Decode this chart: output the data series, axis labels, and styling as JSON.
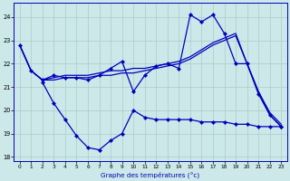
{
  "title": "Graphe des températures (°c)",
  "background_color": "#cce8e8",
  "grid_color": "#aacccc",
  "line_color": "#0000bb",
  "xlim": [
    -0.5,
    23.5
  ],
  "ylim": [
    17.8,
    24.6
  ],
  "yticks": [
    18,
    19,
    20,
    21,
    22,
    23,
    24
  ],
  "xticks": [
    0,
    1,
    2,
    3,
    4,
    5,
    6,
    7,
    8,
    9,
    10,
    11,
    12,
    13,
    14,
    15,
    16,
    17,
    18,
    19,
    20,
    21,
    22,
    23
  ],
  "line_zigzag_top_x": [
    0,
    1,
    2,
    3,
    4,
    5,
    6,
    7,
    8,
    9,
    10,
    11,
    12,
    13,
    14,
    15,
    16,
    17,
    18,
    19,
    20,
    21,
    22,
    23
  ],
  "line_zigzag_top_y": [
    22.8,
    21.7,
    21.3,
    21.5,
    21.4,
    21.4,
    21.3,
    21.5,
    21.8,
    22.1,
    20.8,
    21.5,
    21.9,
    22.0,
    21.8,
    24.1,
    23.8,
    24.1,
    23.3,
    22.0,
    22.0,
    20.7,
    19.8,
    19.3
  ],
  "line_smooth1_x": [
    0,
    1,
    2,
    3,
    4,
    5,
    6,
    7,
    8,
    9,
    10,
    11,
    12,
    13,
    14,
    15,
    16,
    17,
    18,
    19,
    20,
    21,
    22,
    23
  ],
  "line_smooth1_y": [
    22.8,
    21.7,
    21.3,
    21.4,
    21.5,
    21.5,
    21.5,
    21.6,
    21.7,
    21.7,
    21.8,
    21.8,
    21.9,
    22.0,
    22.1,
    22.3,
    22.6,
    22.9,
    23.1,
    23.3,
    22.0,
    20.8,
    19.9,
    19.4
  ],
  "line_smooth2_x": [
    0,
    1,
    2,
    3,
    4,
    5,
    6,
    7,
    8,
    9,
    10,
    11,
    12,
    13,
    14,
    15,
    16,
    17,
    18,
    19,
    20,
    21,
    22,
    23
  ],
  "line_smooth2_y": [
    22.8,
    21.7,
    21.3,
    21.3,
    21.4,
    21.4,
    21.4,
    21.5,
    21.5,
    21.6,
    21.6,
    21.7,
    21.8,
    21.9,
    22.0,
    22.2,
    22.5,
    22.8,
    23.0,
    23.2,
    22.0,
    20.8,
    19.8,
    19.3
  ],
  "line_zigzag_bot_x": [
    2,
    3,
    4,
    5,
    6,
    7,
    8,
    9,
    10,
    11,
    12,
    13,
    14,
    15,
    16,
    17,
    18,
    19,
    20,
    21,
    22,
    23
  ],
  "line_zigzag_bot_y": [
    21.2,
    20.3,
    19.6,
    18.9,
    18.4,
    18.3,
    18.7,
    19.0,
    20.0,
    19.7,
    19.6,
    19.6,
    19.6,
    19.6,
    19.5,
    19.5,
    19.5,
    19.4,
    19.4,
    19.3,
    19.3,
    19.3
  ]
}
